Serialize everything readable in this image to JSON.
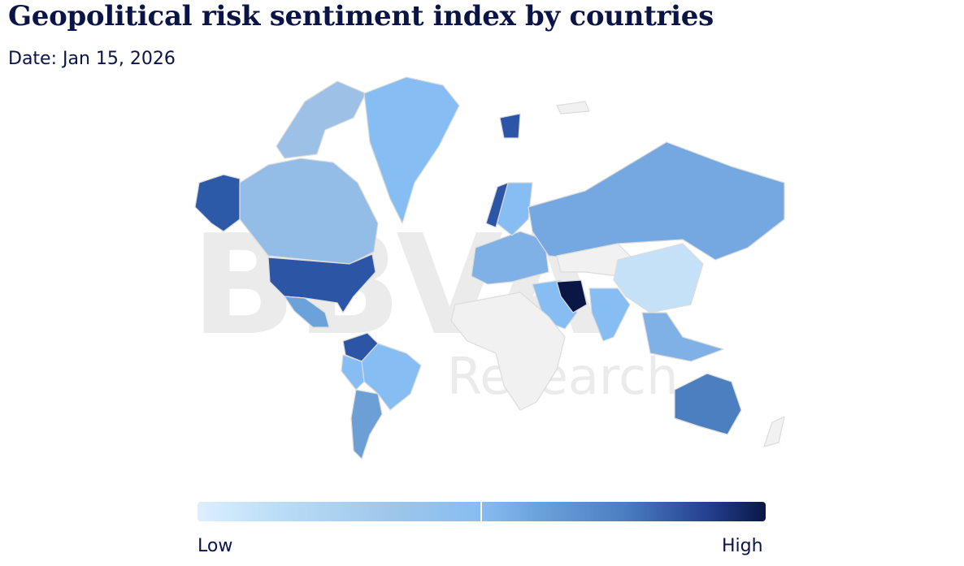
{
  "title": "Geopolitical risk sentiment index by countries",
  "date_label": "Date: Jan 15, 2026",
  "watermark": {
    "brand": "BBVA",
    "sub": "Research"
  },
  "legend": {
    "low": "Low",
    "high": "High"
  },
  "colors": {
    "title": "#0b1446",
    "no_data": "#f1f1f1",
    "border": "#dcdcdc",
    "scale": [
      "#dcefff",
      "#86bdf2",
      "#6aa2db",
      "#2a58a8",
      "#0a1746"
    ]
  },
  "regions": [
    {
      "id": "alaska",
      "risk": 0.8
    },
    {
      "id": "canada",
      "risk": 0.45
    },
    {
      "id": "usa",
      "risk": 0.8
    },
    {
      "id": "mexico",
      "risk": 0.6
    },
    {
      "id": "greenland",
      "risk": 0.5
    },
    {
      "id": "colombia-venezuela",
      "risk": 0.85
    },
    {
      "id": "brazil",
      "risk": 0.5
    },
    {
      "id": "argentina",
      "risk": 0.6
    },
    {
      "id": "europe",
      "risk": 0.55
    },
    {
      "id": "scandinavia",
      "risk": 0.7
    },
    {
      "id": "russia",
      "risk": 0.55
    },
    {
      "id": "china",
      "risk": 0.25
    },
    {
      "id": "iran",
      "risk": 0.95
    },
    {
      "id": "india",
      "risk": 0.55
    },
    {
      "id": "australia",
      "risk": 0.7
    },
    {
      "id": "southeast-asia",
      "risk": 0.5
    }
  ]
}
